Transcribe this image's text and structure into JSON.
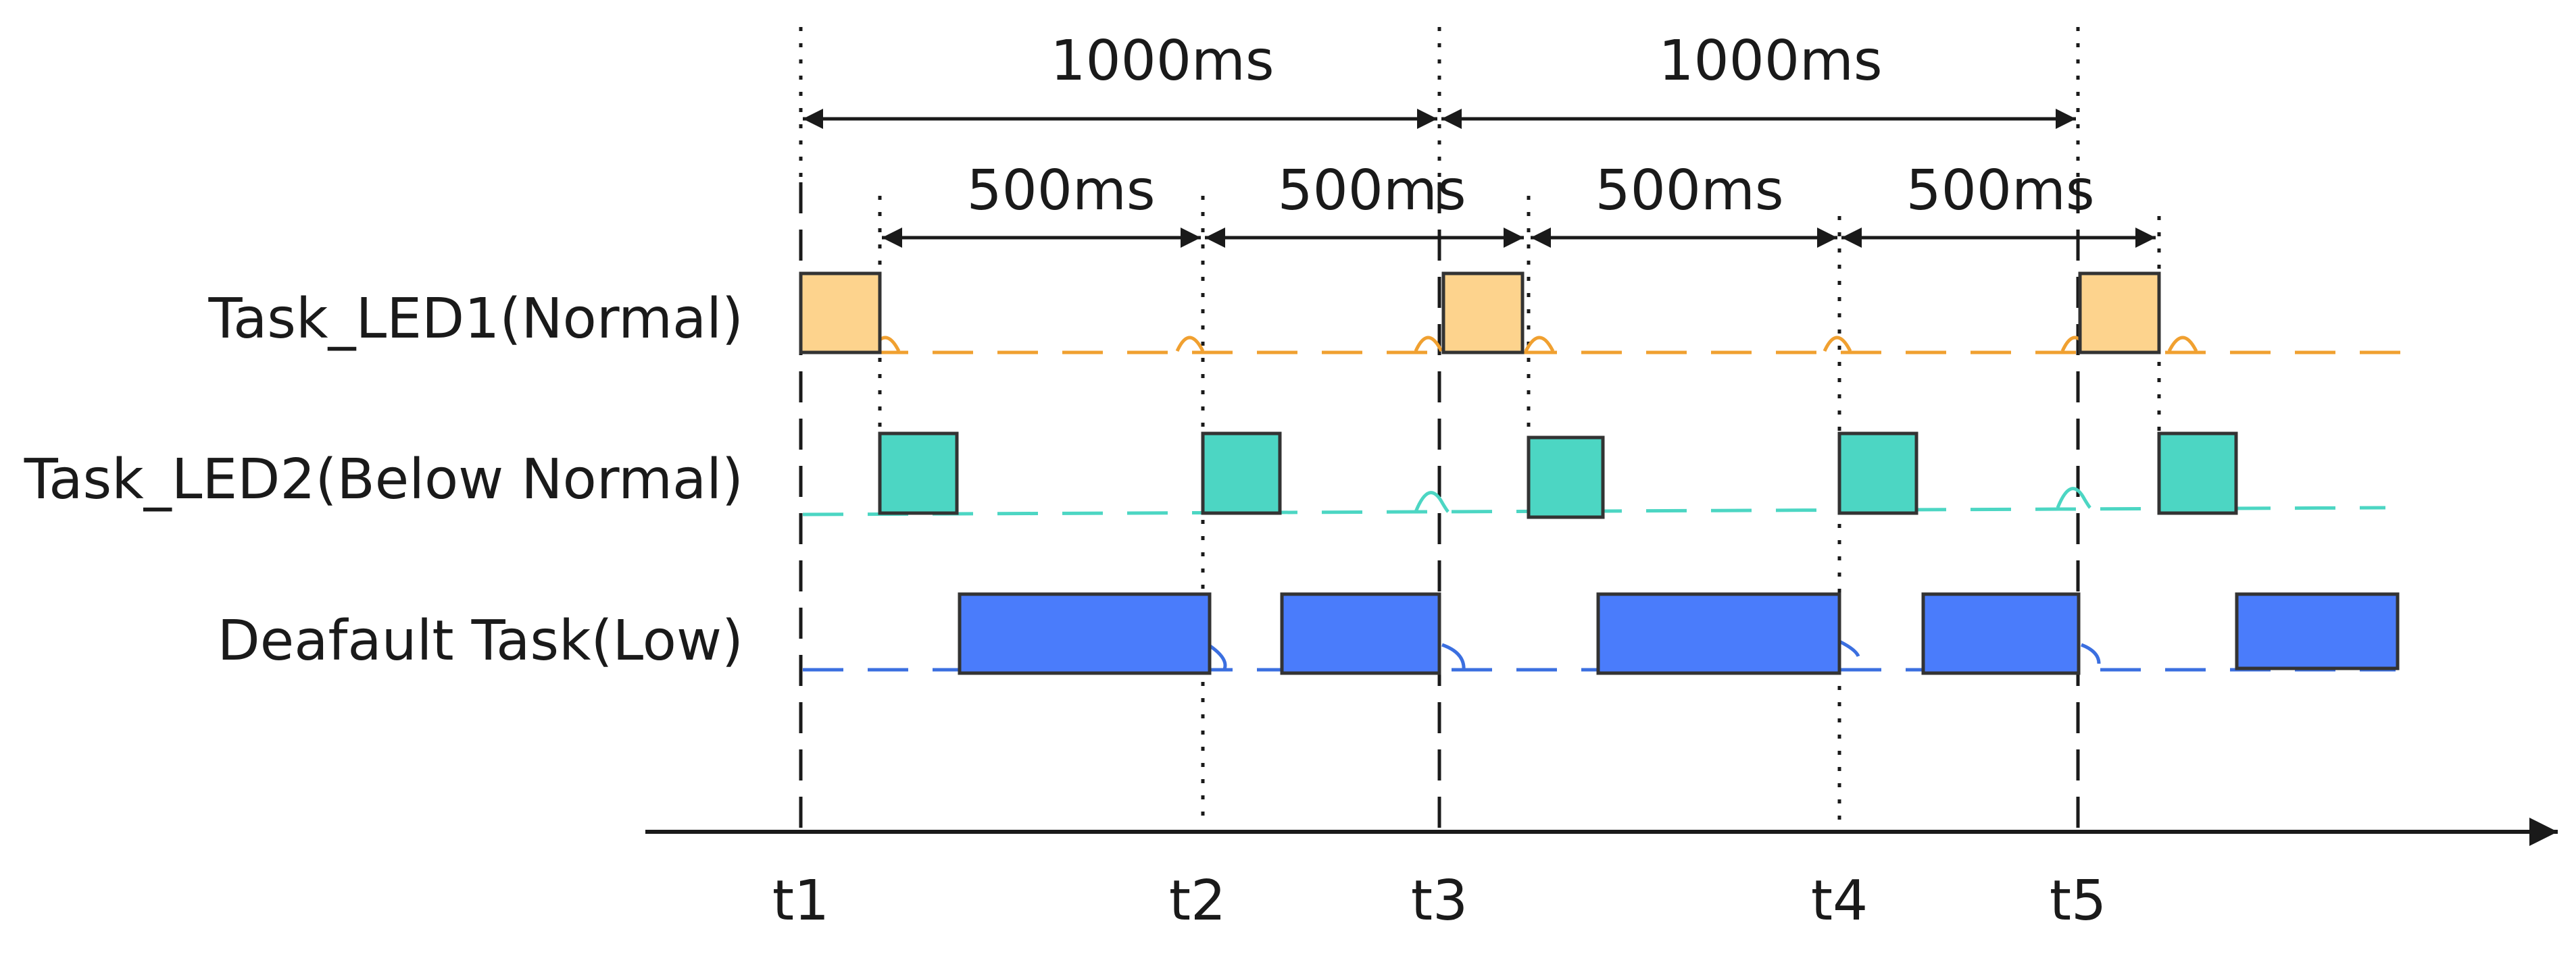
{
  "diagram": {
    "colors": {
      "led1": "#fdd38d",
      "led1_line": "#f0a030",
      "led2": "#4cd6c3",
      "led2_line": "#4cd6c3",
      "default": "#4a7cfb",
      "default_line": "#3b6fe0",
      "axis": "#1a1a1a",
      "outline": "#333333"
    },
    "tasks": [
      {
        "id": "led1",
        "label": "Task_LED1(Normal)"
      },
      {
        "id": "led2",
        "label": "Task_LED2(Below Normal)"
      },
      {
        "id": "default",
        "label": "Deafault Task(Low)"
      }
    ],
    "time_markers": [
      "t1",
      "t2",
      "t3",
      "t4",
      "t5"
    ],
    "intervals_1000": [
      "1000ms",
      "1000ms"
    ],
    "intervals_500": [
      "500ms",
      "500ms",
      "500ms",
      "500ms"
    ]
  }
}
